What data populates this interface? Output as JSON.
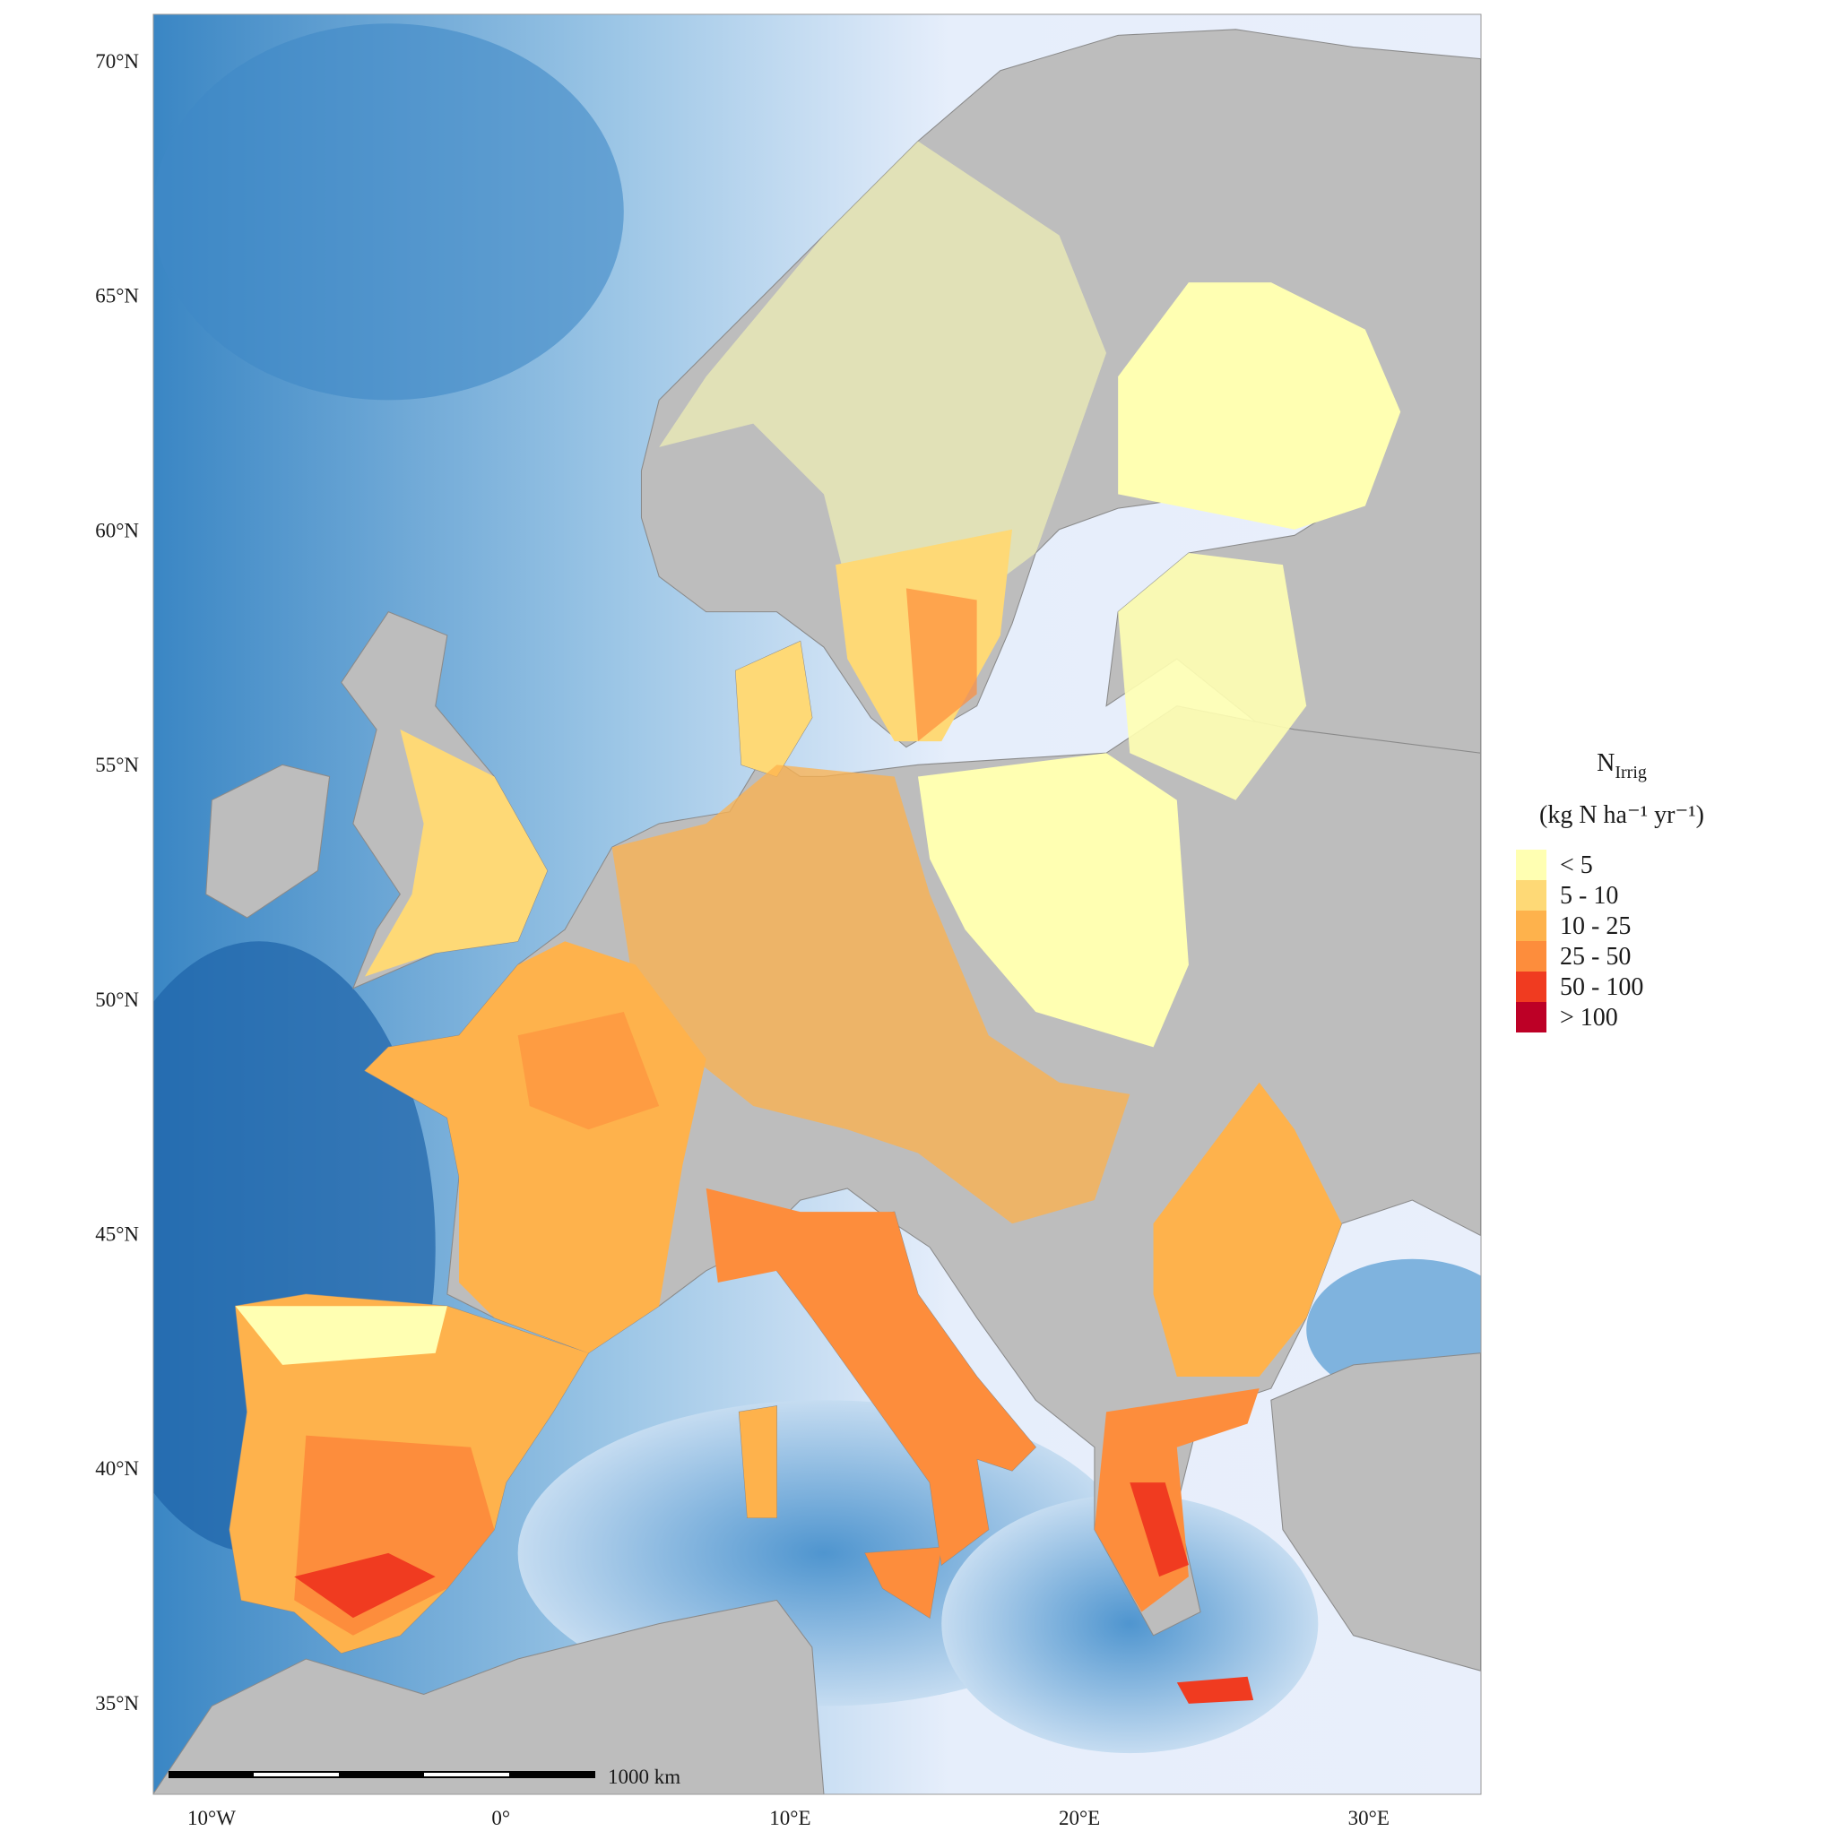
{
  "map": {
    "lat_labels": [
      "70°N",
      "65°N",
      "60°N",
      "55°N",
      "50°N",
      "45°N",
      "40°N",
      "35°N"
    ],
    "lon_labels": [
      "10°W",
      "0°",
      "10°E",
      "20°E",
      "30°E"
    ],
    "legend": {
      "title": "N",
      "title_sub": "Irrig",
      "unit": "(kg N ha⁻¹ yr⁻¹)",
      "items": [
        {
          "label": "< 5",
          "color": "#ffffb2"
        },
        {
          "label": "5 - 10",
          "color": "#fed976"
        },
        {
          "label": "10 - 25",
          "color": "#feb24c"
        },
        {
          "label": "25 - 50",
          "color": "#fd8d3c"
        },
        {
          "label": "50 - 100",
          "color": "#f03b20"
        },
        {
          "label": "> 100",
          "color": "#bd0026"
        }
      ]
    },
    "scale_bar": "1000 km"
  }
}
